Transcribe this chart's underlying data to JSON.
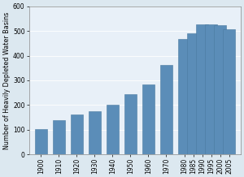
{
  "years": [
    1900,
    1910,
    1920,
    1930,
    1940,
    1950,
    1960,
    1970,
    1980,
    1985,
    1990,
    1995,
    2000,
    2005
  ],
  "values": [
    103,
    138,
    163,
    175,
    200,
    243,
    283,
    362,
    467,
    491,
    525,
    528,
    522,
    508
  ],
  "bar_color": "#5b8db8",
  "background_color": "#dce8f0",
  "plot_bg_color": "#e8f0f8",
  "ylabel": "Number of Heavily Depleted Water Basins",
  "ylim": [
    0,
    600
  ],
  "yticks": [
    0,
    100,
    200,
    300,
    400,
    500,
    600
  ],
  "bar_width": 6.5,
  "ylabel_fontsize": 5.8,
  "tick_fontsize": 5.5,
  "edge_color": "#4a7aa0",
  "xlim_left": 1893.5,
  "xlim_right": 2011.5
}
